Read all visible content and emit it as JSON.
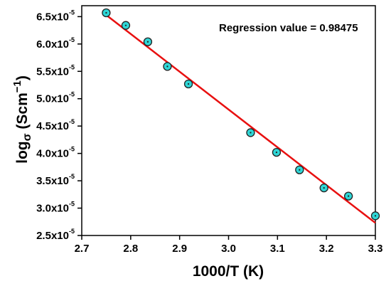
{
  "chart_data": {
    "type": "scatter",
    "xlabel": "1000/T (K)",
    "ylabel": {
      "prefix": "log",
      "sigma": "σ",
      "unit_open": " (Scm",
      "unit_sup": "−1",
      "unit_close": ")"
    },
    "annotation": "Regression value = 0.98475",
    "xlim": [
      2.7,
      3.3
    ],
    "ylim": [
      2.5e-05,
      6.7e-05
    ],
    "x_ticks": [
      2.7,
      2.8,
      2.9,
      3.0,
      3.1,
      3.2,
      3.3
    ],
    "x_tick_labels": [
      "2.7",
      "2.8",
      "2.9",
      "3.0",
      "3.1",
      "3.2",
      "3.3"
    ],
    "y_ticks": [
      2.5e-05,
      3e-05,
      3.5e-05,
      4e-05,
      4.5e-05,
      5e-05,
      5.5e-05,
      6e-05,
      6.5e-05
    ],
    "y_tick_mantissas": [
      "2.5x10",
      "3.0x10",
      "3.5x10",
      "4.0x10",
      "4.5x10",
      "5.0x10",
      "5.5x10",
      "6.0x10",
      "6.5x10"
    ],
    "y_tick_exponent": "-5",
    "series": [
      {
        "marker": "circle",
        "marker_color": "#2fd6d6",
        "x": [
          2.75,
          2.79,
          2.835,
          2.875,
          2.918,
          3.045,
          3.098,
          3.145,
          3.195,
          3.245,
          3.3
        ],
        "y": [
          6.57e-05,
          6.34e-05,
          6.04e-05,
          5.59e-05,
          5.27e-05,
          4.38e-05,
          4.02e-05,
          3.7e-05,
          3.37e-05,
          3.22e-05,
          2.86e-05
        ]
      }
    ],
    "fit_line": {
      "color": "#e81010",
      "x": [
        2.75,
        3.3
      ],
      "y": [
        6.53e-05,
        2.73e-05
      ]
    }
  }
}
